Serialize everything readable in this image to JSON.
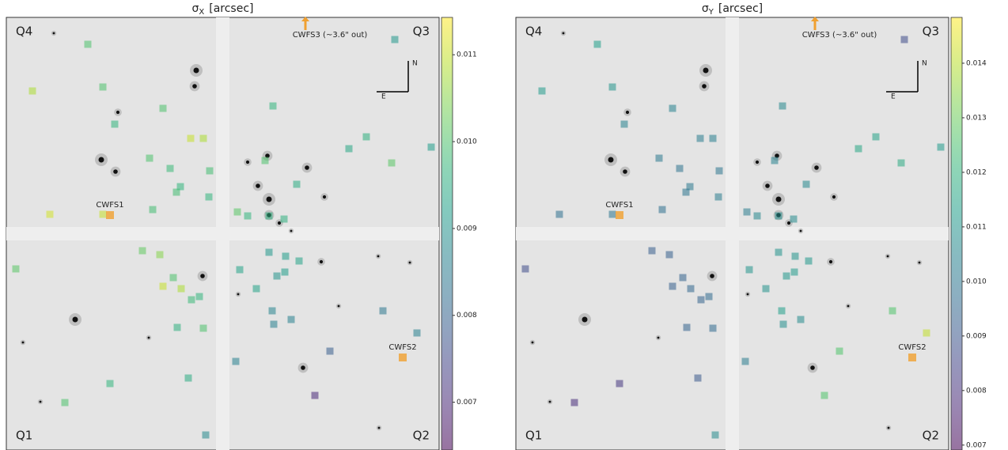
{
  "chart_data": [
    {
      "type": "scatter",
      "title_symbol": "σ",
      "title_subscript": "X",
      "title_unit": "[arcsec]",
      "colormap": "viridis",
      "clim": [
        0.00645,
        0.01143
      ],
      "cticks": [
        0.011,
        {
          "value": 0.01,
          "label": "0.010"
        },
        0.009,
        0.008,
        0.007
      ],
      "xlim": [
        0,
        547
      ],
      "ylim": [
        0,
        547
      ],
      "x": [
        103,
        33,
        122,
        198,
        137,
        233,
        249,
        181,
        207,
        257,
        220,
        215,
        256,
        185,
        55,
        122,
        337,
        433,
        455,
        487,
        537,
        327,
        367,
        292,
        305,
        332,
        351,
        491,
        172,
        194,
        12,
        211,
        198,
        221,
        234,
        244,
        216,
        249,
        131,
        230,
        74,
        252,
        332,
        353,
        370,
        295,
        342,
        352,
        316,
        336,
        338,
        360,
        476,
        519,
        409,
        290,
        390
      ],
      "y": [
        34,
        93,
        88,
        115,
        135,
        153,
        153,
        178,
        191,
        194,
        214,
        221,
        227,
        243,
        249,
        249,
        112,
        166,
        151,
        184,
        164,
        181,
        211,
        246,
        251,
        251,
        255,
        28,
        295,
        300,
        318,
        329,
        340,
        343,
        357,
        353,
        392,
        393,
        463,
        456,
        487,
        528,
        297,
        302,
        308,
        319,
        327,
        322,
        343,
        371,
        388,
        382,
        371,
        399,
        422,
        435,
        478
      ],
      "values": [
        0.01,
        0.0108,
        0.01,
        0.01,
        0.0097,
        0.011,
        0.0108,
        0.01,
        0.0098,
        0.0099,
        0.0097,
        0.0099,
        0.0097,
        0.0099,
        0.0111,
        0.011,
        0.0097,
        0.0094,
        0.0096,
        0.0101,
        0.0092,
        0.01,
        0.0095,
        0.0101,
        0.0097,
        0.0096,
        0.0096,
        0.0091,
        0.0102,
        0.0105,
        0.0101,
        0.01,
        0.011,
        0.0108,
        0.0098,
        0.0097,
        0.0096,
        0.01,
        0.0097,
        0.0095,
        0.01,
        0.0088,
        0.0091,
        0.0092,
        0.0093,
        0.0093,
        0.009,
        0.0092,
        0.0093,
        0.0087,
        0.0086,
        0.0086,
        0.0084,
        0.0086,
        0.0079,
        0.0086,
        0.007
      ],
      "quadrants": [
        "Q4",
        "Q3",
        "Q1",
        "Q2"
      ],
      "annotations": [
        "CWFS1",
        "CWFS2",
        "CWFS3 (~3.6\" out)"
      ],
      "compass": [
        "N",
        "E"
      ]
    },
    {
      "type": "scatter",
      "title_symbol": "σ",
      "title_subscript": "Y",
      "title_unit": "[arcsec]",
      "colormap": "viridis",
      "clim": [
        0.00691,
        0.01484
      ],
      "cticks": [
        0.014,
        0.013,
        0.012,
        0.011,
        {
          "value": 0.01,
          "label": "0.010"
        },
        0.009,
        0.008,
        0.007
      ],
      "xlim": [
        0,
        547
      ],
      "ylim": [
        0,
        547
      ],
      "x": [
        103,
        33,
        122,
        198,
        137,
        233,
        249,
        181,
        207,
        257,
        220,
        215,
        256,
        185,
        55,
        122,
        337,
        433,
        455,
        487,
        537,
        327,
        367,
        292,
        305,
        332,
        351,
        491,
        172,
        194,
        12,
        211,
        198,
        221,
        234,
        244,
        216,
        249,
        131,
        230,
        74,
        252,
        332,
        353,
        370,
        295,
        342,
        352,
        316,
        336,
        338,
        360,
        476,
        519,
        409,
        290,
        390
      ],
      "y": [
        34,
        93,
        88,
        115,
        135,
        153,
        153,
        178,
        191,
        194,
        214,
        221,
        227,
        243,
        249,
        249,
        112,
        166,
        151,
        184,
        164,
        181,
        211,
        246,
        251,
        251,
        255,
        28,
        295,
        300,
        318,
        329,
        340,
        343,
        357,
        353,
        392,
        393,
        463,
        456,
        487,
        528,
        297,
        302,
        308,
        319,
        327,
        322,
        343,
        371,
        388,
        382,
        371,
        399,
        422,
        435,
        478
      ],
      "values": [
        0.0113,
        0.0112,
        0.011,
        0.0104,
        0.0104,
        0.0102,
        0.0103,
        0.0101,
        0.0099,
        0.01,
        0.0101,
        0.01,
        0.0102,
        0.0098,
        0.0098,
        0.01,
        0.0106,
        0.0116,
        0.0115,
        0.0117,
        0.0112,
        0.0104,
        0.0106,
        0.0102,
        0.0106,
        0.0108,
        0.0107,
        0.0087,
        0.0092,
        0.0093,
        0.0087,
        0.0094,
        0.0093,
        0.0095,
        0.0094,
        0.0096,
        0.0094,
        0.0096,
        0.0081,
        0.0091,
        0.0079,
        0.0107,
        0.0109,
        0.011,
        0.0111,
        0.011,
        0.0111,
        0.0112,
        0.0109,
        0.0113,
        0.0108,
        0.0107,
        0.0126,
        0.0141,
        0.0126,
        0.0102,
        0.0126
      ],
      "quadrants": [
        "Q4",
        "Q3",
        "Q1",
        "Q2"
      ],
      "annotations": [
        "CWFS1",
        "CWFS2",
        "CWFS3 (~3.6\" out)"
      ],
      "compass": [
        "N",
        "E"
      ]
    }
  ]
}
